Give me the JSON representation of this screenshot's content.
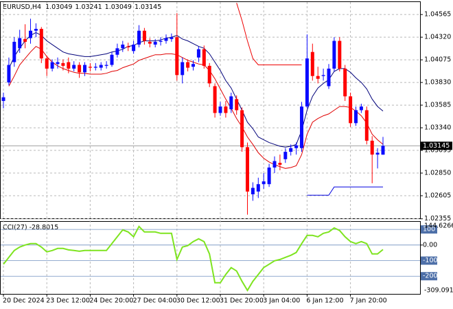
{
  "chart_data": [
    {
      "type": "candlestick",
      "symbol": "EURUSD,H4",
      "categories": [
        "20 Dec 2024",
        null,
        null,
        null,
        null,
        null,
        null,
        null,
        "23 Dec 12:00",
        null,
        null,
        null,
        null,
        null,
        null,
        null,
        "24 Dec 20:00",
        null,
        null,
        null,
        null,
        null,
        null,
        null,
        "27 Dec 04:00",
        null,
        null,
        null,
        null,
        null,
        null,
        null,
        "30 Dec 12:00",
        null,
        null,
        null,
        null,
        null,
        null,
        null,
        "31 Dec 20:00",
        null,
        null,
        null,
        null,
        null,
        null,
        null,
        "3 Jan 04:00",
        null,
        null,
        null,
        null,
        null,
        null,
        null,
        "6 Jan 12:00",
        null,
        null,
        null,
        null,
        null,
        null,
        null,
        "7 Jan 20:00",
        null,
        null,
        null,
        null,
        null,
        null
      ],
      "open": [
        1.0363,
        1.0383,
        1.0405,
        1.042,
        1.043,
        1.0431,
        1.0439,
        1.0441,
        1.0409,
        1.0398,
        1.0403,
        1.0404,
        1.0405,
        1.0398,
        1.0402,
        1.0394,
        1.04,
        1.0399,
        1.0399,
        1.0401,
        1.0402,
        1.0413,
        1.042,
        1.0422,
        1.0417,
        1.0424,
        1.0439,
        1.0427,
        1.0424,
        1.0427,
        1.0428,
        1.043,
        1.0432,
        1.0391,
        1.0405,
        1.04,
        1.041,
        1.0419,
        1.0401,
        1.0379,
        1.035,
        1.0357,
        1.0354,
        1.0365,
        1.0353,
        1.0313,
        1.0262,
        1.0265,
        1.0273,
        1.0273,
        1.0291,
        1.0296,
        1.03,
        1.0308,
        1.0312,
        1.0312,
        1.0357,
        1.0416,
        1.039,
        1.039,
        1.0379,
        1.0398,
        1.0428,
        1.0398,
        1.0368,
        1.0339,
        1.0353,
        1.0353,
        1.032,
        1.0305,
        1.03049
      ],
      "high": [
        1.0372,
        1.041,
        1.0432,
        1.044,
        1.0446,
        1.0452,
        1.0447,
        1.0443,
        1.0412,
        1.0408,
        1.041,
        1.0408,
        1.041,
        1.0406,
        1.0405,
        1.0405,
        1.0404,
        1.0404,
        1.0405,
        1.0406,
        1.0416,
        1.0425,
        1.0428,
        1.0426,
        1.0428,
        1.0445,
        1.0442,
        1.0431,
        1.043,
        1.0432,
        1.0435,
        1.0436,
        1.0458,
        1.041,
        1.0408,
        1.0407,
        1.0422,
        1.0423,
        1.0404,
        1.0382,
        1.0362,
        1.0363,
        1.0372,
        1.0369,
        1.0356,
        1.0318,
        1.0275,
        1.028,
        1.0285,
        1.0295,
        1.0303,
        1.0305,
        1.0312,
        1.0316,
        1.0318,
        1.0362,
        1.0435,
        1.0425,
        1.04,
        1.0398,
        1.0403,
        1.0432,
        1.0432,
        1.0402,
        1.0372,
        1.0357,
        1.036,
        1.0357,
        1.0325,
        1.0312,
        1.03241
      ],
      "low": [
        1.0355,
        1.038,
        1.04,
        1.0415,
        1.042,
        1.0425,
        1.0432,
        1.0404,
        1.039,
        1.0395,
        1.0398,
        1.0396,
        1.0393,
        1.0395,
        1.0388,
        1.039,
        1.0395,
        1.0396,
        1.0396,
        1.0398,
        1.04,
        1.041,
        1.0416,
        1.0417,
        1.0414,
        1.0421,
        1.0424,
        1.0421,
        1.0421,
        1.0423,
        1.0425,
        1.0427,
        1.0385,
        1.0382,
        1.0395,
        1.0396,
        1.0405,
        1.0398,
        1.0378,
        1.0345,
        1.0347,
        1.0345,
        1.035,
        1.0348,
        1.0308,
        1.024,
        1.0255,
        1.0258,
        1.0268,
        1.027,
        1.0285,
        1.0288,
        1.0296,
        1.0304,
        1.0305,
        1.0308,
        1.0355,
        1.0385,
        1.0382,
        1.0385,
        1.0376,
        1.0395,
        1.0395,
        1.0363,
        1.0335,
        1.0336,
        1.035,
        1.0316,
        1.0274,
        1.029,
        1.03049
      ],
      "close": [
        1.0367,
        1.0402,
        1.0427,
        1.0431,
        1.0427,
        1.0439,
        1.0441,
        1.0409,
        1.0398,
        1.0405,
        1.0405,
        1.0401,
        1.0398,
        1.0402,
        1.0394,
        1.0402,
        1.0399,
        1.04,
        1.0402,
        1.0402,
        1.0413,
        1.042,
        1.0424,
        1.0421,
        1.0424,
        1.0439,
        1.0428,
        1.0425,
        1.0427,
        1.0428,
        1.0431,
        1.0432,
        1.0391,
        1.0405,
        1.0399,
        1.0403,
        1.0419,
        1.0401,
        1.0382,
        1.035,
        1.0357,
        1.035,
        1.0368,
        1.0353,
        1.0313,
        1.0265,
        1.0269,
        1.0273,
        1.0276,
        1.0291,
        1.0298,
        1.0294,
        1.0308,
        1.0312,
        1.0315,
        1.0357,
        1.0409,
        1.039,
        1.0387,
        1.0391,
        1.0398,
        1.0428,
        1.0398,
        1.0368,
        1.0339,
        1.0353,
        1.0357,
        1.032,
        1.0305,
        1.0307,
        1.03145
      ],
      "colors": {
        "up": "#0a0aff",
        "down": "#ff0000"
      },
      "lines": [
        {
          "color": "#00007a",
          "values": [
            null,
            1.0398,
            1.0411,
            1.042,
            1.0428,
            1.0434,
            1.0437,
            1.0434,
            1.0428,
            1.0424,
            1.042,
            1.0416,
            1.0414,
            1.0413,
            1.0412,
            1.0411,
            1.0411,
            1.0412,
            1.0413,
            1.0414,
            1.0416,
            1.0417,
            1.0419,
            1.0422,
            1.0423,
            1.0426,
            1.0428,
            1.0428,
            1.0428,
            1.0429,
            1.0431,
            1.0432,
            1.0434,
            1.043,
            1.0428,
            1.0425,
            1.0422,
            1.042,
            1.0414,
            1.0405,
            1.0396,
            1.0385,
            1.0377,
            1.0365,
            1.0353,
            1.034,
            1.0333,
            1.0324,
            1.0321,
            1.0318,
            1.0316,
            1.0314,
            1.0313,
            1.0314,
            1.0316,
            1.0331,
            1.0353,
            1.0368,
            1.0377,
            1.0382,
            1.0386,
            1.0395,
            1.0398,
            1.0398,
            1.0394,
            1.0388,
            1.0383,
            1.0376,
            1.0365,
            1.0357,
            1.0352
          ]
        },
        {
          "color": "#e00000",
          "values": [
            null,
            1.0379,
            1.039,
            1.0402,
            1.0409,
            1.0416,
            1.0422,
            1.0419,
            1.0411,
            1.0405,
            1.0401,
            1.0398,
            1.0396,
            1.0394,
            1.0393,
            1.0393,
            1.0392,
            1.0392,
            1.0392,
            1.0393,
            1.0395,
            1.0396,
            1.0399,
            1.0401,
            1.0403,
            1.0407,
            1.0409,
            1.0411,
            1.0413,
            1.0413,
            1.0414,
            1.0414,
            1.0413,
            1.041,
            1.0407,
            1.0405,
            1.0403,
            1.0402,
            1.0396,
            1.0387,
            1.0376,
            1.0365,
            1.0355,
            1.0344,
            1.0335,
            1.0324,
            1.0316,
            1.0307,
            1.0301,
            1.0297,
            1.0294,
            1.0292,
            1.029,
            1.0291,
            1.0293,
            1.0305,
            1.0327,
            1.034,
            1.0344,
            1.0347,
            1.0349,
            1.0353,
            1.0357,
            1.0357,
            1.0356,
            1.0352,
            1.0347,
            1.0339,
            1.0327,
            1.0321,
            1.0316
          ]
        },
        {
          "color": "#ee0000",
          "values": [
            null,
            null,
            null,
            null,
            null,
            null,
            null,
            null,
            null,
            null,
            null,
            null,
            null,
            null,
            null,
            null,
            null,
            null,
            null,
            null,
            null,
            null,
            null,
            null,
            null,
            null,
            null,
            null,
            null,
            null,
            null,
            null,
            null,
            null,
            null,
            null,
            null,
            null,
            null,
            null,
            null,
            null,
            null,
            1.0469,
            1.045,
            1.0428,
            1.0409,
            1.0402,
            1.0402,
            1.0402,
            1.0402,
            1.0402,
            1.0402,
            1.0402,
            1.0402,
            1.0402,
            null,
            null,
            null,
            null,
            null,
            null,
            null,
            null,
            null,
            null,
            null,
            null,
            null,
            null,
            null
          ]
        },
        {
          "color": "#0000e0",
          "values": [
            null,
            null,
            null,
            null,
            null,
            null,
            null,
            null,
            null,
            null,
            null,
            null,
            null,
            null,
            null,
            null,
            null,
            null,
            null,
            null,
            null,
            null,
            null,
            null,
            null,
            null,
            null,
            null,
            null,
            null,
            null,
            null,
            null,
            null,
            null,
            null,
            null,
            null,
            null,
            null,
            null,
            null,
            null,
            null,
            null,
            null,
            null,
            null,
            null,
            null,
            null,
            null,
            null,
            null,
            null,
            null,
            1.0261,
            1.0261,
            1.0261,
            1.0261,
            1.0261,
            1.027,
            1.027,
            1.027,
            1.027,
            1.027,
            1.027,
            1.027,
            1.027,
            1.027,
            1.027
          ]
        }
      ],
      "ylim": [
        1.0236,
        1.047
      ],
      "yticks": [
        1.02355,
        1.02605,
        {
          "value": 1.0285,
          "label": "1.02850"
        },
        1.03095,
        {
          "value": 1.0334,
          "label": "1.03340"
        },
        1.03585,
        {
          "value": 1.0383,
          "label": "1.03830"
        },
        1.04075,
        {
          "value": 1.0432,
          "label": "1.04320"
        },
        1.04565
      ],
      "grid": true
    },
    {
      "type": "line",
      "name": "CCI(27)",
      "color": "#7ee41f",
      "values": [
        -123,
        -79,
        -35,
        -13,
        0,
        9,
        9,
        -13,
        -44,
        -35,
        -22,
        -22,
        -31,
        -35,
        -40,
        -35,
        -35,
        -35,
        -35,
        -35,
        9,
        53,
        97,
        84,
        53,
        119,
        84,
        84,
        84,
        75,
        75,
        75,
        -93,
        -13,
        -4,
        22,
        40,
        22,
        -57,
        -242,
        -242,
        -189,
        -145,
        -167,
        -233,
        -291,
        -233,
        -189,
        -145,
        -123,
        -101,
        -93,
        -79,
        -66,
        -48,
        9,
        62,
        62,
        53,
        75,
        84,
        110,
        93,
        53,
        22,
        9,
        22,
        9,
        -57,
        -57,
        -28.8015
      ],
      "ylim": [
        -309.0916,
        144.6266
      ],
      "yticks": [
        100,
        {
          "value": 0,
          "label": "0.00"
        },
        -100,
        -200
      ]
    }
  ]
}
